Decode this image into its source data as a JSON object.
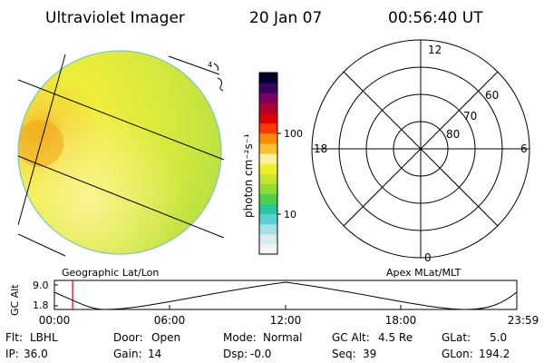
{
  "header": {
    "instrument": "Ultraviolet Imager",
    "date": "20 Jan 07",
    "time": "00:56:40 UT"
  },
  "colorbar": {
    "unit_label": "photon cm⁻²s⁻¹",
    "ticks": [
      {
        "label": "100",
        "value": 100
      },
      {
        "label": "10",
        "value": 10
      }
    ],
    "colors": [
      "#f4f4f4",
      "#d6eef2",
      "#a8dfe6",
      "#5ccfd8",
      "#26c79a",
      "#4ed04a",
      "#8fdc32",
      "#c8e628",
      "#eef028",
      "#fff0a0",
      "#ffc030",
      "#ff8c00",
      "#ff3800",
      "#e00000",
      "#b00030",
      "#7a0060",
      "#3a0060",
      "#000030"
    ]
  },
  "image_panel": {
    "label": "Geographic Lat/Lon",
    "annotation": "4"
  },
  "polar_plot": {
    "label": "Apex MLat/MLT",
    "mlt_labels": {
      "top": "12",
      "right": "6",
      "bottom": "0",
      "left": "18"
    },
    "lat_labels": [
      "60",
      "70",
      "80"
    ]
  },
  "timeline": {
    "axis_label": "GC Alt",
    "y_ticks": [
      "9.0",
      "1.8"
    ],
    "x_ticks": [
      "00:00",
      "06:00",
      "12:00",
      "18:00",
      "23:59"
    ],
    "current_time_fraction": 0.0394
  },
  "status": {
    "row1": [
      {
        "key": "Flt:",
        "value": "LBHL"
      },
      {
        "key": "Door:",
        "value": "Open"
      },
      {
        "key": "Mode:",
        "value": "Normal"
      },
      {
        "key": "GC Alt:",
        "value": "4.5 Re"
      },
      {
        "key": "GLat:",
        "value": "5.0"
      }
    ],
    "row2": [
      {
        "key": "IP:",
        "value": "36.0"
      },
      {
        "key": "Gain:",
        "value": "14"
      },
      {
        "key": "Dsp:",
        "value": "-0.0"
      },
      {
        "key": "Seq:",
        "value": "39"
      },
      {
        "key": "GLon:",
        "value": "194.2"
      }
    ]
  }
}
